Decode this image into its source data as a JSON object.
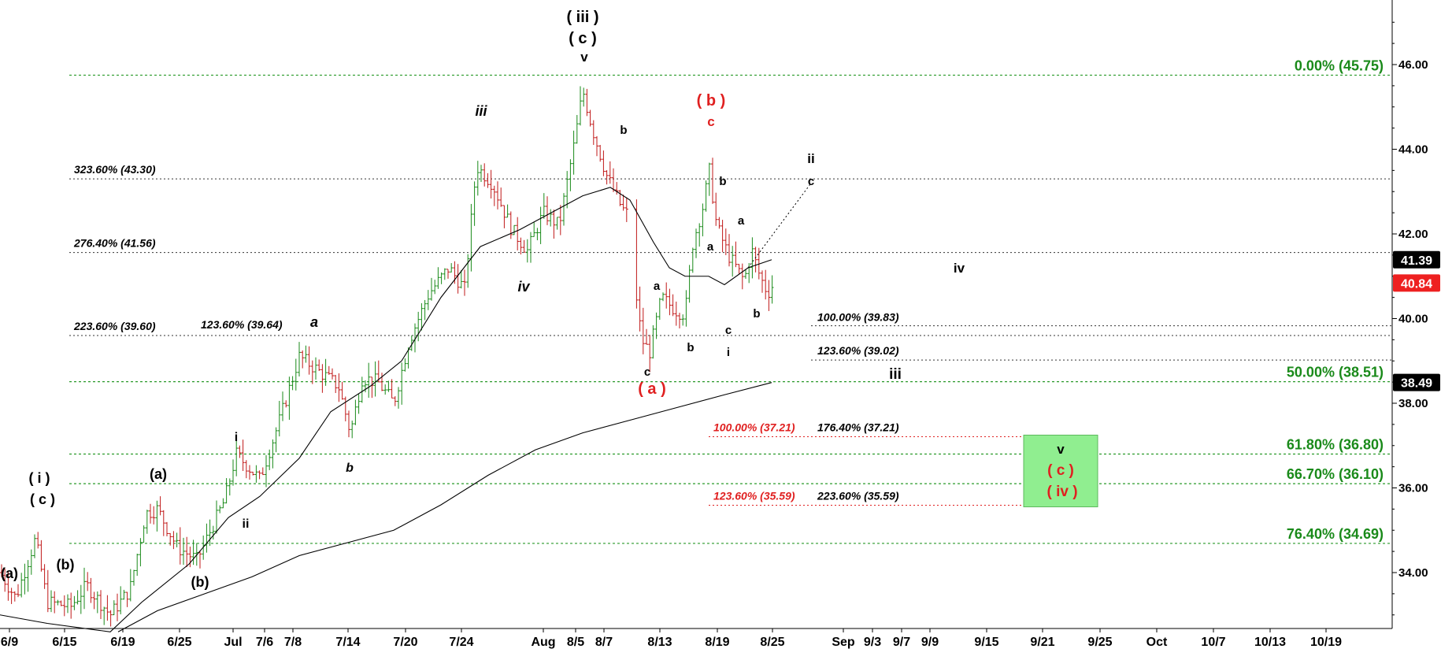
{
  "chart_data": {
    "type": "candlestick",
    "title": "",
    "y_axis": {
      "min": 32.5,
      "max": 47.0,
      "ticks": [
        "34.00",
        "36.00",
        "38.00",
        "40.00",
        "42.00",
        "44.00",
        "46.00"
      ]
    },
    "x_axis": {
      "labels": [
        "6/9",
        "6/15",
        "6/19",
        "6/25",
        "Jul",
        "7/6",
        "7/8",
        "7/14",
        "7/20",
        "7/24",
        "Aug",
        "8/5",
        "8/7",
        "8/13",
        "8/19",
        "8/25",
        "Sep",
        "9/3",
        "9/7",
        "9/9",
        "9/15",
        "9/21",
        "9/25",
        "Oct",
        "10/7",
        "10/13",
        "10/19"
      ]
    },
    "price_markers": [
      {
        "label": "41.39",
        "value": 41.39,
        "color": "#000000"
      },
      {
        "label": "40.84",
        "value": 40.84,
        "color": "#ee2020"
      },
      {
        "label": "38.49",
        "value": 38.49,
        "color": "#000000"
      }
    ],
    "fib_levels": [
      {
        "label": "0.00% (45.75)",
        "value": 45.75,
        "color": "#1a8a1a",
        "style": "bold-green"
      },
      {
        "label": "50.00% (38.51)",
        "value": 38.51,
        "color": "#1a8a1a",
        "style": "bold-green"
      },
      {
        "label": "61.80% (36.80)",
        "value": 36.8,
        "color": "#1a8a1a",
        "style": "bold-green"
      },
      {
        "label": "66.70% (36.10)",
        "value": 36.1,
        "color": "#1a8a1a",
        "style": "bold-green"
      },
      {
        "label": "76.40% (34.69)",
        "value": 34.69,
        "color": "#1a8a1a",
        "style": "bold-green"
      }
    ],
    "extension_levels": [
      {
        "label": "323.60% (43.30)",
        "value": 43.3
      },
      {
        "label": "276.40% (41.56)",
        "value": 41.56
      },
      {
        "label": "223.60% (39.60)",
        "value": 39.6
      },
      {
        "label": "123.60% (39.64)",
        "value": 39.64
      },
      {
        "label": "100.00% (39.83)",
        "value": 39.83
      },
      {
        "label": "123.60% (39.02)",
        "value": 39.02
      },
      {
        "label": "176.40% (37.21)",
        "value": 37.21
      },
      {
        "label": "223.60% (35.59)",
        "value": 35.59
      }
    ],
    "red_extension_levels": [
      {
        "label": "100.00% (37.21)",
        "value": 37.21
      },
      {
        "label": "123.60% (35.59)",
        "value": 35.59
      }
    ],
    "target_zone": {
      "top": 37.21,
      "bottom": 35.59,
      "color": "#90ee90"
    },
    "wave_labels": [
      "( iii )",
      "( c )",
      "v",
      "( b )",
      "c",
      "iii",
      "b",
      "ii",
      "c",
      "a",
      "a",
      "iv",
      "b",
      "a",
      "c",
      "i",
      "b",
      "a",
      "b",
      "c",
      "( a )",
      "iv",
      "( i )",
      "( c )",
      "(a)",
      "(a)",
      "(b)",
      "(b)",
      "i",
      "ii",
      "b",
      "iii",
      "v",
      "( c )",
      "( iv )"
    ]
  }
}
